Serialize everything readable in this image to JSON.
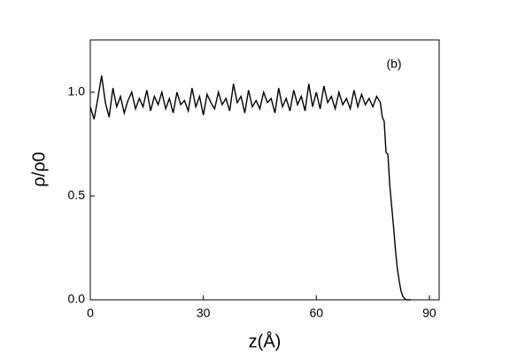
{
  "chart_data": {
    "type": "line",
    "annotation": "(b)",
    "x_label": "z(Å)",
    "y_label": "ρ/ρ0",
    "x": [
      0,
      1,
      2,
      3,
      4,
      5,
      6,
      7,
      8,
      9,
      10,
      11,
      12,
      13,
      14,
      15,
      16,
      17,
      18,
      19,
      20,
      21,
      22,
      23,
      24,
      25,
      26,
      27,
      28,
      29,
      30,
      31,
      32,
      33,
      34,
      35,
      36,
      37,
      38,
      39,
      40,
      41,
      42,
      43,
      44,
      45,
      46,
      47,
      48,
      49,
      50,
      51,
      52,
      53,
      54,
      55,
      56,
      57,
      58,
      59,
      60,
      61,
      62,
      63,
      64,
      65,
      66,
      67,
      68,
      69,
      70,
      71,
      72,
      73,
      74,
      75,
      76,
      77,
      77.5,
      78,
      78.5,
      79,
      79.5,
      80,
      80.5,
      81,
      81.5,
      82,
      82.5,
      83,
      83.5,
      84,
      85
    ],
    "series": [
      {
        "color": "#000000",
        "values": [
          0.93,
          0.87,
          0.97,
          1.08,
          0.95,
          0.88,
          1.02,
          0.93,
          0.98,
          0.9,
          0.96,
          1.0,
          0.92,
          0.97,
          0.93,
          1.01,
          0.91,
          0.98,
          0.94,
          1.0,
          0.92,
          0.97,
          0.9,
          1.0,
          0.94,
          0.96,
          0.91,
          1.02,
          0.93,
          0.98,
          0.89,
          0.99,
          0.95,
          0.92,
          1.0,
          0.94,
          0.97,
          0.91,
          1.04,
          0.95,
          0.98,
          0.9,
          1.01,
          0.93,
          0.96,
          0.92,
          1.0,
          0.95,
          0.97,
          0.9,
          1.02,
          0.93,
          0.97,
          0.91,
          1.01,
          0.94,
          0.98,
          0.91,
          1.04,
          0.93,
          1.0,
          0.92,
          1.03,
          0.95,
          0.98,
          0.92,
          1.0,
          0.94,
          0.97,
          0.92,
          1.01,
          0.93,
          0.99,
          0.94,
          0.97,
          0.93,
          0.98,
          0.95,
          0.88,
          0.86,
          0.71,
          0.7,
          0.55,
          0.45,
          0.35,
          0.24,
          0.15,
          0.09,
          0.04,
          0.015,
          0.005,
          0,
          0
        ]
      }
    ],
    "xlim": [
      0,
      92.6
    ],
    "ylim": [
      0,
      1.252
    ],
    "xticks": [
      0,
      30,
      60,
      90
    ],
    "yticks": [
      {
        "value": 0,
        "label": "0.0"
      },
      {
        "value": 0.5,
        "label": "0.5"
      },
      {
        "value": 1,
        "label": "1.0"
      }
    ]
  }
}
